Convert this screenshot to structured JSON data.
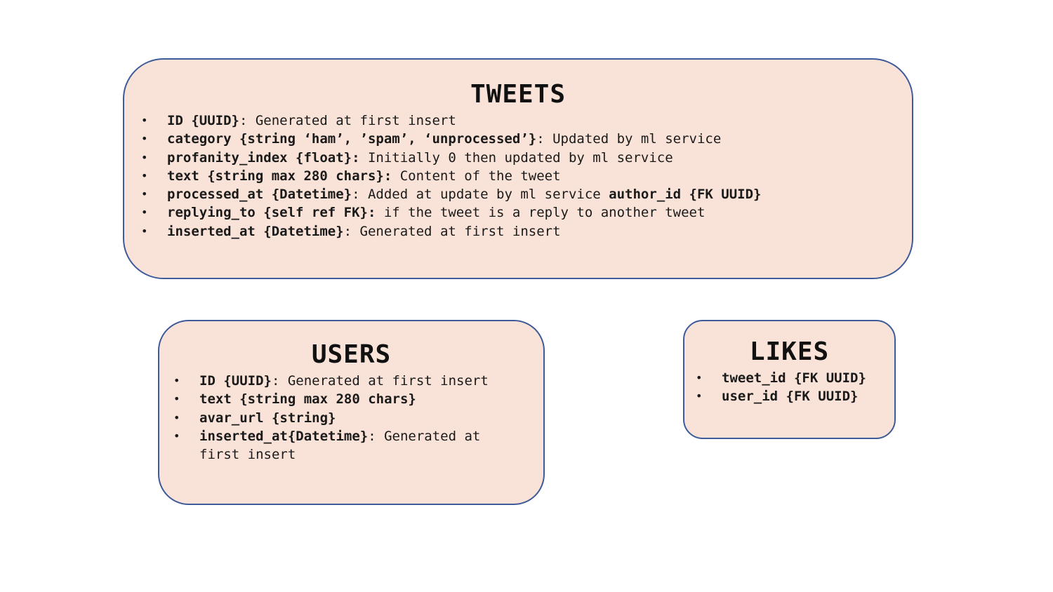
{
  "tweets": {
    "title": "TWEETS",
    "fields": [
      {
        "name": "ID {UUID}",
        "desc": ": Generated at first insert"
      },
      {
        "name": "category {string ‘ham’, ’spam’, ‘unprocessed’}",
        "desc": ": Updated by ml service"
      },
      {
        "name": "profanity_index {float}:",
        "desc": " Initially 0 then updated by ml service"
      },
      {
        "name": "text {string max 280 chars}:",
        "desc": " Content of the tweet"
      },
      {
        "name": "processed_at {Datetime}",
        "desc": ": Added at update by ml service ",
        "extra": "author_id {FK UUID}"
      },
      {
        "name": "replying_to {self ref FK}:",
        "desc": " if the tweet is a reply to another tweet"
      },
      {
        "name": "inserted_at {Datetime}",
        "desc": ": Generated at first insert"
      }
    ]
  },
  "users": {
    "title": "USERS",
    "fields": [
      {
        "name": "ID {UUID}",
        "desc": ": Generated at first insert"
      },
      {
        "name": "text {string max 280 chars}",
        "desc": ""
      },
      {
        "name": "avar_url {string}",
        "desc": ""
      },
      {
        "name": "inserted_at{Datetime}",
        "desc": ": Generated at first insert"
      }
    ]
  },
  "likes": {
    "title": "LIKES",
    "fields": [
      {
        "name": "tweet_id {FK UUID}",
        "desc": ""
      },
      {
        "name": "user_id {FK UUID}",
        "desc": ""
      }
    ]
  },
  "colors": {
    "box_fill": "#f9e3d8",
    "box_border": "#3d5a99"
  }
}
